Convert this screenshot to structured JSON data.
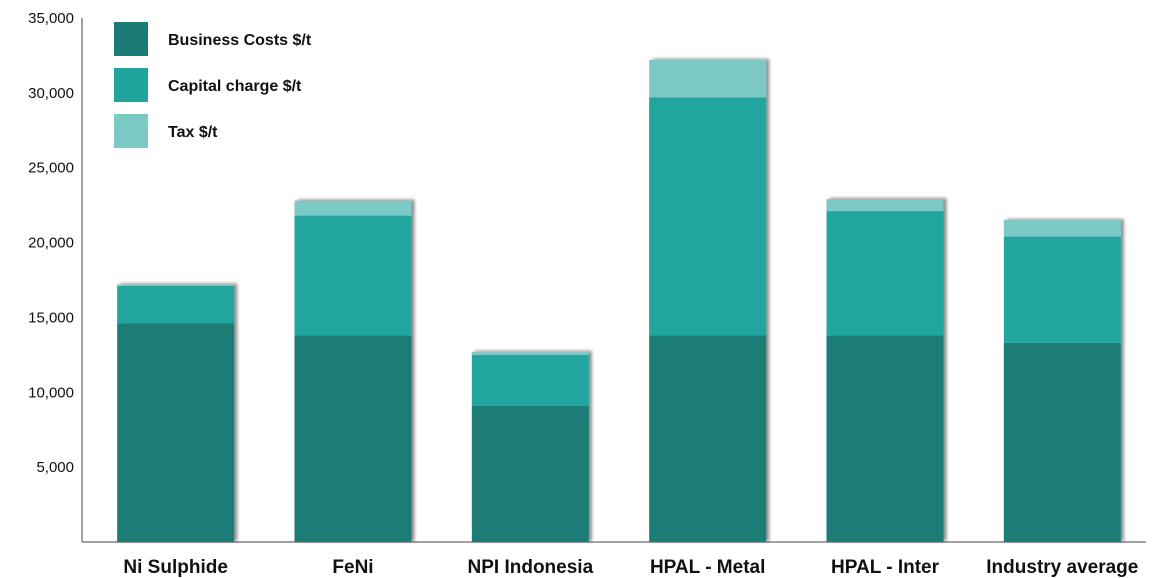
{
  "chart_data": {
    "type": "bar",
    "stacked": true,
    "categories": [
      "Ni Sulphide",
      "FeNi",
      "NPI Indonesia",
      "HPAL - Metal",
      "HPAL - Inter",
      "Industry average"
    ],
    "series": [
      {
        "name": "Business Costs $/t",
        "color": "#1a7b76",
        "values": [
          14600,
          13800,
          9100,
          13800,
          13800,
          13300
        ]
      },
      {
        "name": "Capital charge $/t",
        "color": "#20a59e",
        "values": [
          2500,
          8000,
          3400,
          15900,
          8300,
          7100
        ]
      },
      {
        "name": "Tax $/t",
        "color": "#7ccac5",
        "values": [
          100,
          1000,
          200,
          2500,
          800,
          1100
        ]
      }
    ],
    "yticks": [
      "35,000",
      "30,000",
      "25,000",
      "20,000",
      "15,000",
      "10,000",
      "5,000"
    ],
    "ylim": [
      0,
      35000
    ],
    "grid": false,
    "legend_position": "top-left"
  }
}
